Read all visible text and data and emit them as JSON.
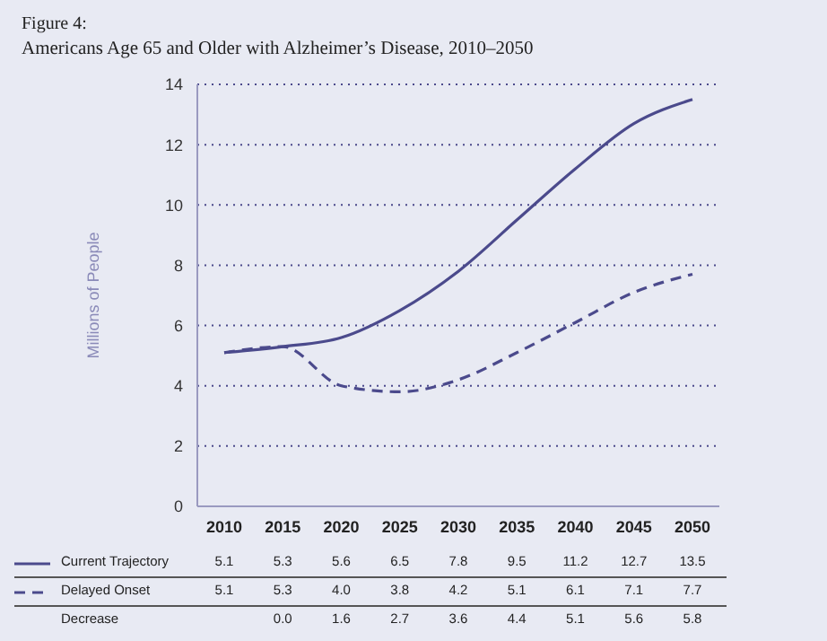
{
  "chart_data": {
    "type": "line",
    "title": "Figure 4:",
    "subtitle": "Americans Age 65 and Older with Alzheimer’s Disease, 2010–2050",
    "ylabel": "Millions of People",
    "categories": [
      "2010",
      "2015",
      "2020",
      "2025",
      "2030",
      "2035",
      "2040",
      "2045",
      "2050"
    ],
    "series": [
      {
        "name": "Current Trajectory",
        "color": "#4b4a8c",
        "line_style": "solid",
        "values": [
          5.1,
          5.3,
          5.6,
          6.5,
          7.8,
          9.5,
          11.2,
          12.7,
          13.5
        ],
        "value_labels": [
          "5.1",
          "5.3",
          "5.6",
          "6.5",
          "7.8",
          "9.5",
          "11.2",
          "12.7",
          "13.5"
        ]
      },
      {
        "name": "Delayed Onset",
        "color": "#4b4a8c",
        "line_style": "dashed",
        "values": [
          5.1,
          5.3,
          4.0,
          3.8,
          4.2,
          5.1,
          6.1,
          7.1,
          7.7
        ],
        "value_labels": [
          "5.1",
          "5.3",
          "4.0",
          "3.8",
          "4.2",
          "5.1",
          "6.1",
          "7.1",
          "7.7"
        ]
      }
    ],
    "annotations": [
      "Decrease",
      "0.0",
      "1.6",
      "2.7",
      "3.6",
      "4.4",
      "5.1",
      "5.6",
      "5.8"
    ],
    "ylim": [
      0,
      14
    ],
    "yticks": [
      0,
      2,
      4,
      6,
      8,
      10,
      12,
      14
    ],
    "grid": "y",
    "legend": "bottom left",
    "marker": "none"
  }
}
